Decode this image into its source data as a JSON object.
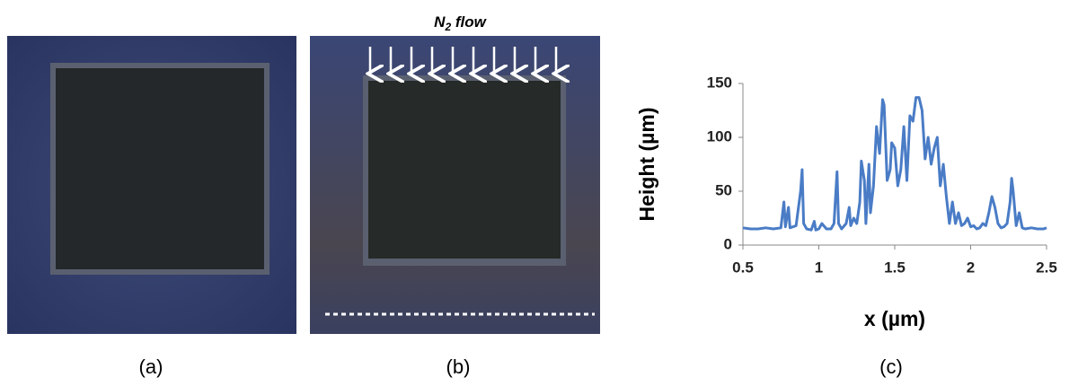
{
  "panels": [
    "(a)",
    "(b)",
    "(c)"
  ],
  "flow_label": {
    "main": "N",
    "sub": "2",
    "rest": " flow"
  },
  "chart_data": {
    "type": "line",
    "xlabel": "x (µm)",
    "ylabel": "Height (µm)",
    "color": "#4a7cc6",
    "x": [
      0.5,
      0.55,
      0.6,
      0.65,
      0.7,
      0.75,
      0.77,
      0.78,
      0.8,
      0.81,
      0.85,
      0.88,
      0.89,
      0.9,
      0.92,
      0.95,
      0.97,
      0.98,
      1.0,
      1.02,
      1.05,
      1.08,
      1.1,
      1.12,
      1.13,
      1.15,
      1.18,
      1.2,
      1.21,
      1.23,
      1.25,
      1.27,
      1.28,
      1.3,
      1.31,
      1.33,
      1.34,
      1.36,
      1.38,
      1.4,
      1.42,
      1.43,
      1.45,
      1.47,
      1.48,
      1.5,
      1.52,
      1.54,
      1.56,
      1.58,
      1.6,
      1.62,
      1.64,
      1.66,
      1.68,
      1.7,
      1.72,
      1.74,
      1.76,
      1.78,
      1.8,
      1.82,
      1.84,
      1.86,
      1.88,
      1.9,
      1.92,
      1.94,
      1.96,
      1.98,
      2.0,
      2.02,
      2.04,
      2.06,
      2.08,
      2.1,
      2.12,
      2.14,
      2.16,
      2.18,
      2.2,
      2.22,
      2.24,
      2.26,
      2.27,
      2.28,
      2.3,
      2.32,
      2.34,
      2.36,
      2.4,
      2.44,
      2.48,
      2.5
    ],
    "values": [
      16,
      15,
      15,
      16,
      15,
      16,
      40,
      17,
      35,
      16,
      18,
      50,
      70,
      20,
      15,
      14,
      22,
      14,
      15,
      20,
      15,
      15,
      20,
      68,
      20,
      15,
      20,
      35,
      18,
      25,
      20,
      40,
      78,
      60,
      20,
      75,
      30,
      55,
      110,
      85,
      135,
      130,
      60,
      70,
      95,
      90,
      55,
      70,
      110,
      60,
      120,
      115,
      137,
      137,
      125,
      80,
      100,
      75,
      90,
      100,
      55,
      75,
      45,
      20,
      40,
      20,
      30,
      18,
      20,
      25,
      17,
      18,
      15,
      16,
      20,
      18,
      30,
      45,
      35,
      20,
      16,
      17,
      20,
      40,
      62,
      50,
      18,
      30,
      16,
      15,
      16,
      15,
      15,
      16
    ],
    "xlim": [
      0.5,
      2.5
    ],
    "xticks": [
      0.5,
      1,
      1.5,
      2,
      2.5
    ],
    "ylim": [
      0,
      150
    ],
    "yticks": [
      0,
      50,
      100,
      150
    ]
  }
}
